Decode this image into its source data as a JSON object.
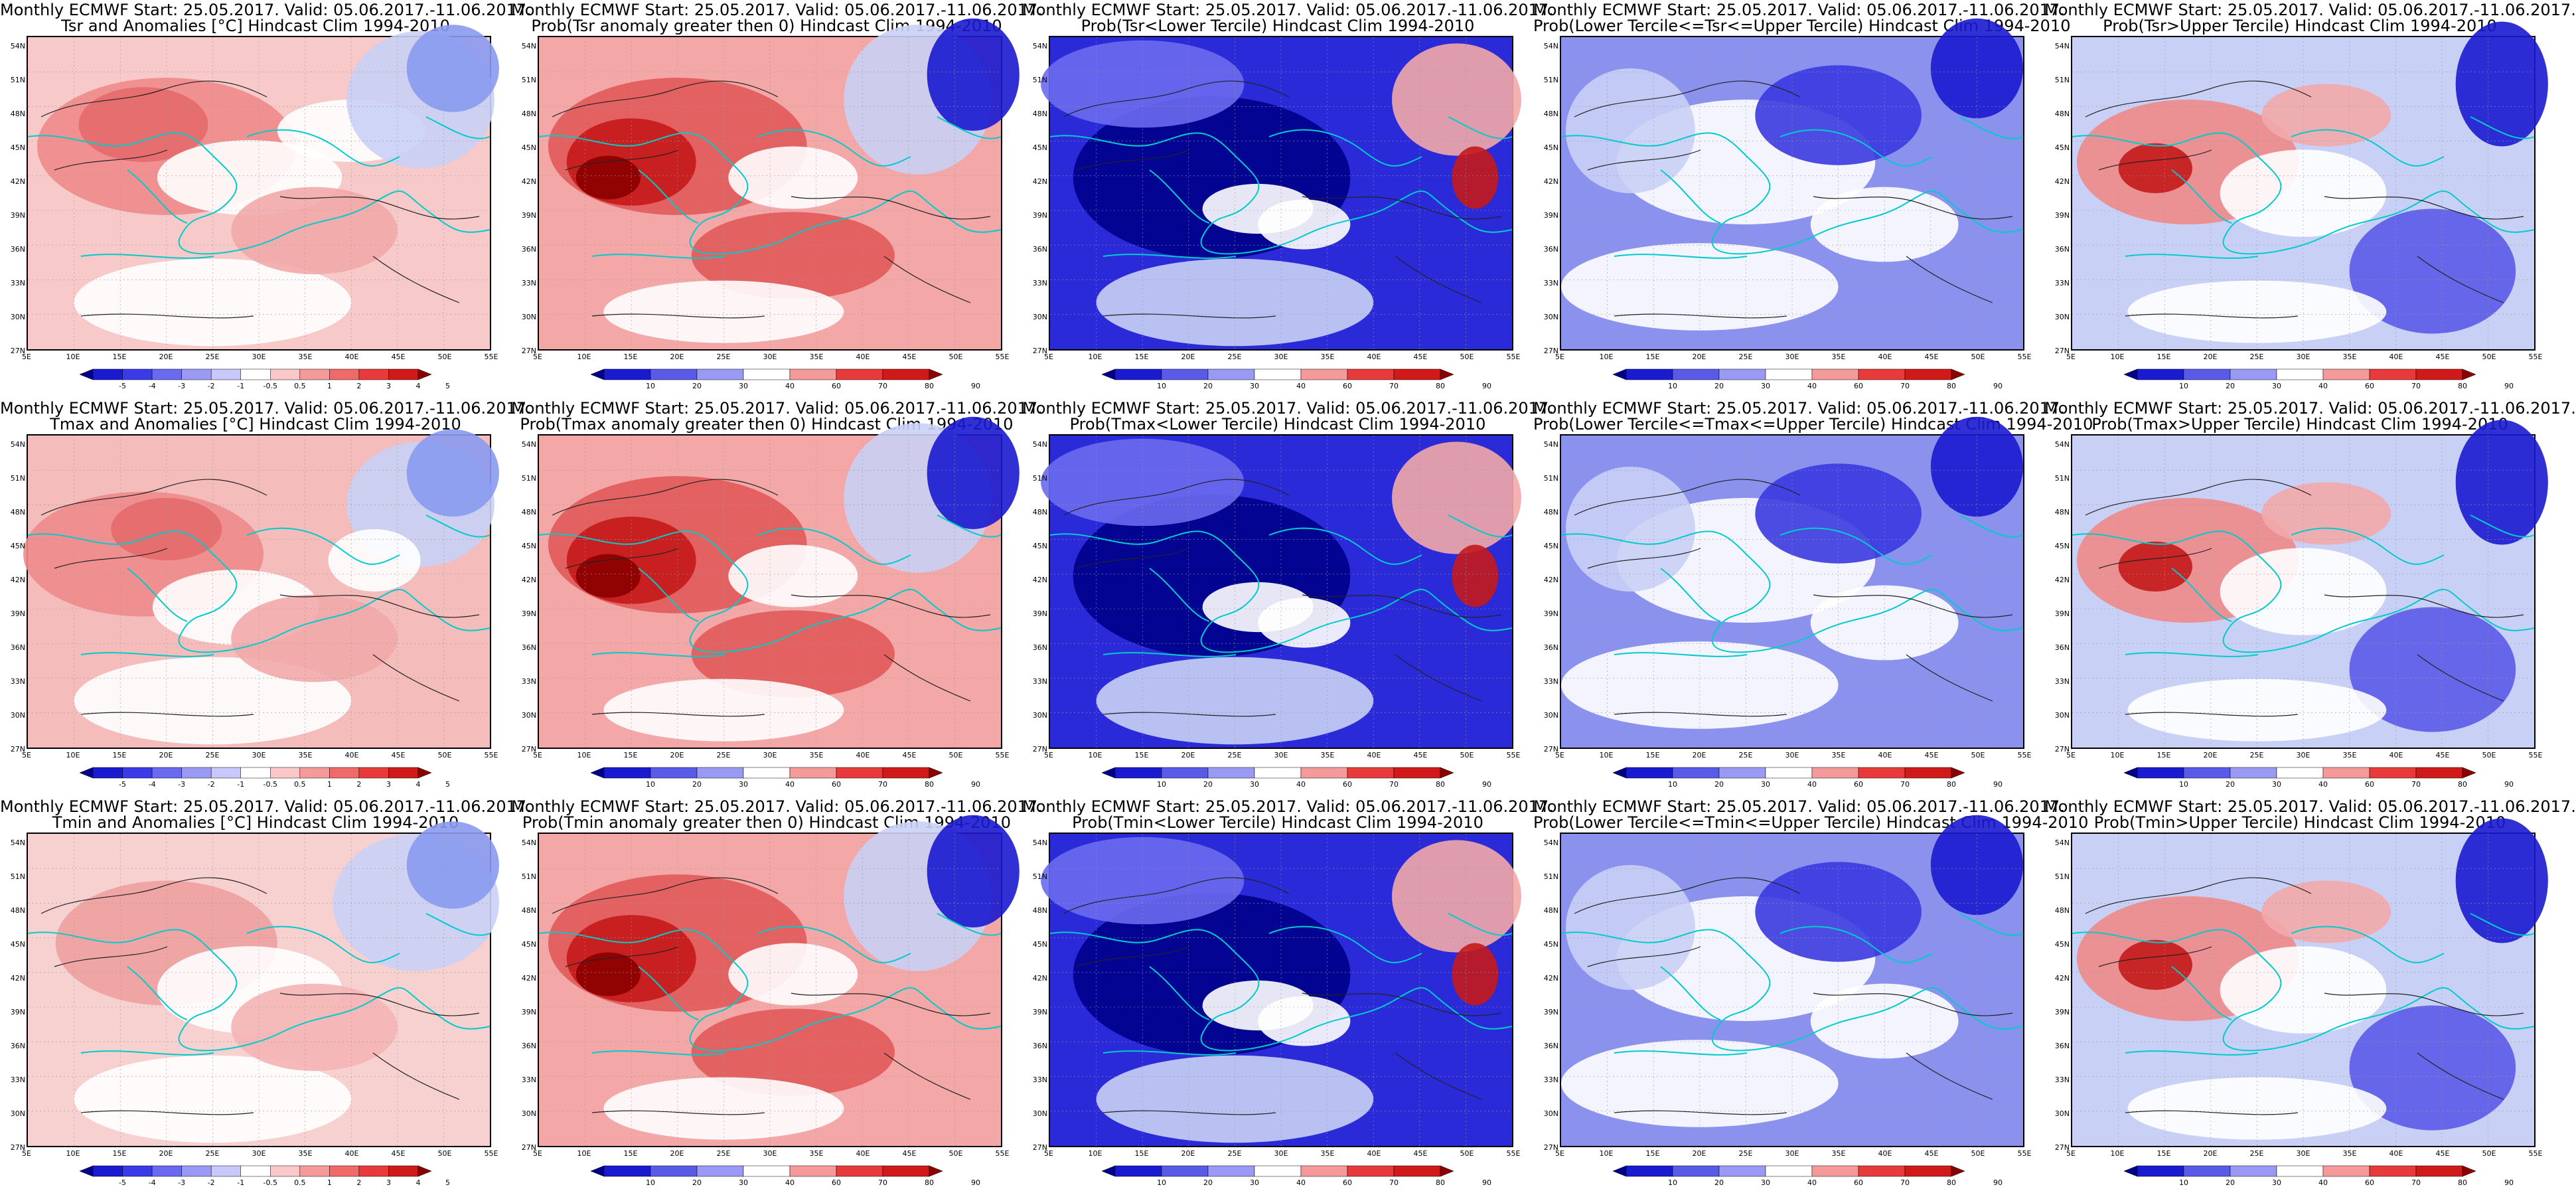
{
  "xticks": [
    "5E",
    "10E",
    "15E",
    "20E",
    "25E",
    "30E",
    "35E",
    "40E",
    "45E",
    "50E",
    "55E"
  ],
  "yticks": [
    "54N",
    "51N",
    "48N",
    "45N",
    "42N",
    "39N",
    "36N",
    "33N",
    "30N",
    "27N"
  ],
  "colorbars": {
    "anomaly": {
      "ticks": [
        "-5",
        "-4",
        "-3",
        "-2",
        "-1",
        "-0.5",
        "0.5",
        "1",
        "2",
        "3",
        "4",
        "5"
      ],
      "colors": [
        "#00008b",
        "#1a1ad0",
        "#3a3ae8",
        "#6a6af0",
        "#9a9af5",
        "#c8c8fa",
        "#ffffff",
        "#fac8c8",
        "#f59a9a",
        "#f06a6a",
        "#e83a3a",
        "#d01a1a",
        "#8b0000"
      ]
    },
    "probability": {
      "ticks": [
        "10",
        "20",
        "30",
        "40",
        "60",
        "70",
        "80",
        "90"
      ],
      "colors": [
        "#00008b",
        "#1a1ad0",
        "#5a5ae8",
        "#9a9af5",
        "#ffffff",
        "#f59a9a",
        "#e83a3a",
        "#d01a1a",
        "#8b0000"
      ]
    }
  },
  "panels": [
    {
      "title1": "Monthly ECMWF Start: 25.05.2017. Valid: 05.06.2017.-11.06.2017.",
      "title2": "Tsr and Anomalies [°C] Hindcast Clim 1994-2010",
      "bar": "anomaly",
      "palette": "anomaly_tsr"
    },
    {
      "title1": "Monthly ECMWF Start: 25.05.2017. Valid: 05.06.2017.-11.06.2017.",
      "title2": "Prob(Tsr anomaly greater then 0) Hindcast Clim 1994-2010",
      "bar": "probability",
      "palette": "prob_gt0"
    },
    {
      "title1": "Monthly ECMWF Start: 25.05.2017. Valid: 05.06.2017.-11.06.2017.",
      "title2": "Prob(Tsr<Lower Tercile) Hindcast Clim 1994-2010",
      "bar": "probability",
      "palette": "lower"
    },
    {
      "title1": "Monthly ECMWF Start: 25.05.2017. Valid: 05.06.2017.-11.06.2017.",
      "title2": "Prob(Lower Tercile<=Tsr<=Upper Tercile) Hindcast Clim 1994-2010",
      "bar": "probability",
      "palette": "middle"
    },
    {
      "title1": "Monthly ECMWF Start: 25.05.2017. Valid: 05.06.2017.-11.06.2017.",
      "title2": "Prob(Tsr>Upper Tercile) Hindcast Clim 1994-2010",
      "bar": "probability",
      "palette": "upper"
    },
    {
      "title1": "Monthly ECMWF Start: 25.05.2017. Valid: 05.06.2017.-11.06.2017.",
      "title2": "Tmax and Anomalies [°C] Hindcast Clim 1994-2010",
      "bar": "anomaly",
      "palette": "anomaly_tmax"
    },
    {
      "title1": "Monthly ECMWF Start: 25.05.2017. Valid: 05.06.2017.-11.06.2017.",
      "title2": "Prob(Tmax anomaly greater then 0) Hindcast Clim 1994-2010",
      "bar": "probability",
      "palette": "prob_gt0"
    },
    {
      "title1": "Monthly ECMWF Start: 25.05.2017. Valid: 05.06.2017.-11.06.2017.",
      "title2": "Prob(Tmax<Lower Tercile) Hindcast Clim 1994-2010",
      "bar": "probability",
      "palette": "lower"
    },
    {
      "title1": "Monthly ECMWF Start: 25.05.2017. Valid: 05.06.2017.-11.06.2017.",
      "title2": "Prob(Lower Tercile<=Tmax<=Upper Tercile) Hindcast Clim 1994-2010",
      "bar": "probability",
      "palette": "middle"
    },
    {
      "title1": "Monthly ECMWF Start: 25.05.2017. Valid: 05.06.2017.-11.06.2017.",
      "title2": "Prob(Tmax>Upper Tercile) Hindcast Clim 1994-2010",
      "bar": "probability",
      "palette": "upper"
    },
    {
      "title1": "Monthly ECMWF Start: 25.05.2017. Valid: 05.06.2017.-11.06.2017.",
      "title2": "Tmin and Anomalies [°C] Hindcast Clim 1994-2010",
      "bar": "anomaly",
      "palette": "anomaly_tmin"
    },
    {
      "title1": "Monthly ECMWF Start: 25.05.2017. Valid: 05.06.2017.-11.06.2017.",
      "title2": "Prob(Tmin anomaly greater then 0) Hindcast Clim 1994-2010",
      "bar": "probability",
      "palette": "prob_gt0"
    },
    {
      "title1": "Monthly ECMWF Start: 25.05.2017. Valid: 05.06.2017.-11.06.2017.",
      "title2": "Prob(Tmin<Lower Tercile) Hindcast Clim 1994-2010",
      "bar": "probability",
      "palette": "lower"
    },
    {
      "title1": "Monthly ECMWF Start: 25.05.2017. Valid: 05.06.2017.-11.06.2017.",
      "title2": "Prob(Lower Tercile<=Tmin<=Upper Tercile) Hindcast Clim 1994-2010",
      "bar": "probability",
      "palette": "middle"
    },
    {
      "title1": "Monthly ECMWF Start: 25.05.2017. Valid: 05.06.2017.-11.06.2017.",
      "title2": "Prob(Tmin>Upper Tercile) Hindcast Clim 1994-2010",
      "bar": "probability",
      "palette": "upper"
    }
  ]
}
